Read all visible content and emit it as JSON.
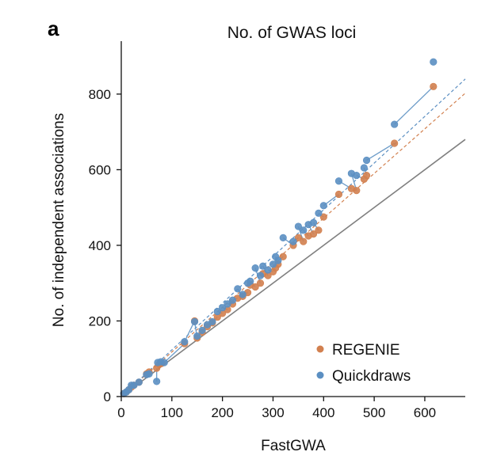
{
  "panel_label": "a",
  "colors": {
    "regenie": "#d2804f",
    "quickdraws": "#5b8fc2",
    "connector": "#6b9bc8",
    "identity": "#808080",
    "axis": "#111111"
  },
  "chart_data": {
    "type": "scatter",
    "title": "No. of GWAS loci",
    "xlabel": "FastGWA",
    "ylabel": "No. of independent associations",
    "xlim": [
      0,
      680
    ],
    "ylim": [
      0,
      940
    ],
    "xticks": [
      0,
      100,
      200,
      300,
      400,
      500,
      600
    ],
    "yticks": [
      0,
      200,
      400,
      600,
      800
    ],
    "grid": false,
    "legend_position": "bottom-right",
    "identity_line": true,
    "series": [
      {
        "name": "REGENIE",
        "color": "#d2804f",
        "fit_slope": 1.18,
        "points": [
          [
            5,
            8
          ],
          [
            10,
            12
          ],
          [
            15,
            18
          ],
          [
            20,
            25
          ],
          [
            25,
            30
          ],
          [
            35,
            38
          ],
          [
            50,
            60
          ],
          [
            55,
            65
          ],
          [
            70,
            75
          ],
          [
            75,
            85
          ],
          [
            80,
            88
          ],
          [
            125,
            140
          ],
          [
            145,
            200
          ],
          [
            150,
            155
          ],
          [
            160,
            170
          ],
          [
            170,
            185
          ],
          [
            180,
            195
          ],
          [
            190,
            210
          ],
          [
            200,
            220
          ],
          [
            210,
            230
          ],
          [
            220,
            245
          ],
          [
            230,
            260
          ],
          [
            240,
            265
          ],
          [
            250,
            275
          ],
          [
            255,
            295
          ],
          [
            265,
            290
          ],
          [
            275,
            300
          ],
          [
            280,
            325
          ],
          [
            290,
            320
          ],
          [
            300,
            330
          ],
          [
            305,
            340
          ],
          [
            310,
            350
          ],
          [
            320,
            370
          ],
          [
            340,
            400
          ],
          [
            350,
            420
          ],
          [
            360,
            410
          ],
          [
            370,
            425
          ],
          [
            380,
            430
          ],
          [
            390,
            440
          ],
          [
            400,
            475
          ],
          [
            430,
            535
          ],
          [
            455,
            550
          ],
          [
            465,
            545
          ],
          [
            480,
            575
          ],
          [
            485,
            585
          ],
          [
            540,
            670
          ],
          [
            617,
            820
          ]
        ]
      },
      {
        "name": "Quickdraws",
        "color": "#5b8fc2",
        "fit_slope": 1.235,
        "points": [
          [
            5,
            8
          ],
          [
            10,
            12
          ],
          [
            15,
            18
          ],
          [
            20,
            30
          ],
          [
            25,
            30
          ],
          [
            35,
            38
          ],
          [
            50,
            58
          ],
          [
            55,
            60
          ],
          [
            70,
            40
          ],
          [
            72,
            90
          ],
          [
            78,
            92
          ],
          [
            85,
            90
          ],
          [
            125,
            145
          ],
          [
            145,
            198
          ],
          [
            150,
            160
          ],
          [
            160,
            175
          ],
          [
            170,
            190
          ],
          [
            180,
            198
          ],
          [
            190,
            225
          ],
          [
            200,
            235
          ],
          [
            210,
            245
          ],
          [
            220,
            255
          ],
          [
            230,
            285
          ],
          [
            240,
            270
          ],
          [
            250,
            300
          ],
          [
            255,
            305
          ],
          [
            265,
            340
          ],
          [
            275,
            320
          ],
          [
            280,
            345
          ],
          [
            290,
            335
          ],
          [
            300,
            350
          ],
          [
            305,
            370
          ],
          [
            310,
            360
          ],
          [
            320,
            420
          ],
          [
            340,
            410
          ],
          [
            350,
            450
          ],
          [
            360,
            440
          ],
          [
            370,
            455
          ],
          [
            380,
            460
          ],
          [
            390,
            485
          ],
          [
            400,
            505
          ],
          [
            430,
            570
          ],
          [
            455,
            590
          ],
          [
            465,
            585
          ],
          [
            480,
            605
          ],
          [
            485,
            625
          ],
          [
            540,
            720
          ],
          [
            617,
            885
          ]
        ]
      }
    ]
  }
}
